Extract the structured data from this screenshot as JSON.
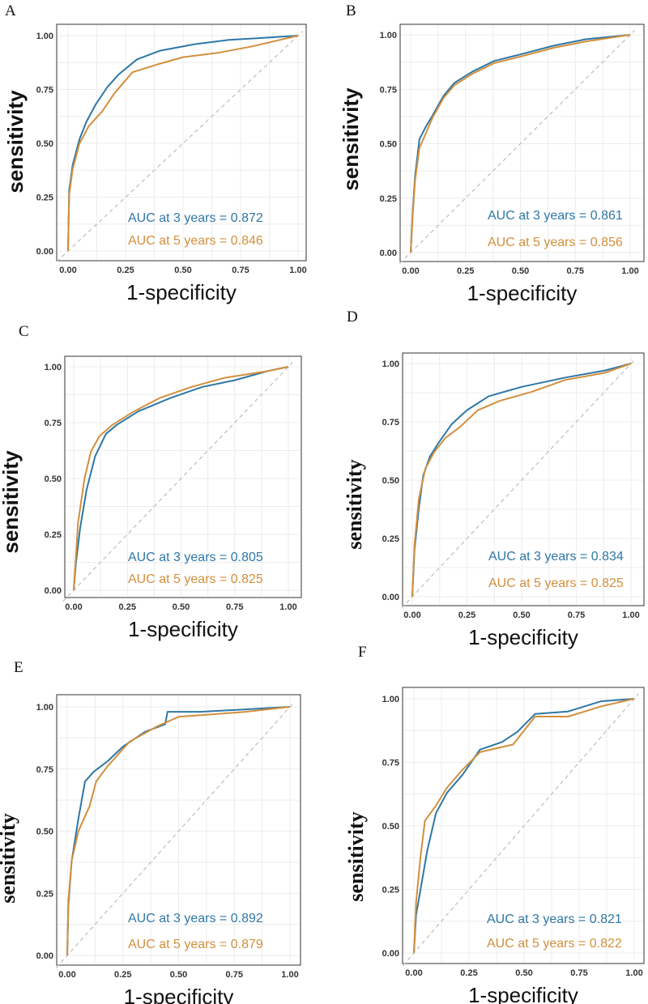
{
  "colors": {
    "series_3yr": "#2e77a6",
    "series_5yr": "#d28f3d",
    "grid": "#ececec",
    "frame": "#333333",
    "diagonal": "#bdbdbd"
  },
  "chart_data": [
    {
      "panel": "A",
      "type": "line",
      "xlabel": "1-specificity",
      "ylabel": "sensitivity",
      "xlim": [
        0,
        1
      ],
      "ylim": [
        0,
        1
      ],
      "xticks": [
        "0.00",
        "0.25",
        "0.50",
        "0.75",
        "1.00"
      ],
      "yticks": [
        "0.00",
        "0.25",
        "0.50",
        "0.75",
        "1.00"
      ],
      "series": [
        {
          "name": "3 years",
          "label": "AUC at 3 years = 0.872",
          "points": [
            [
              0,
              0
            ],
            [
              0.005,
              0.28
            ],
            [
              0.02,
              0.4
            ],
            [
              0.05,
              0.52
            ],
            [
              0.08,
              0.6
            ],
            [
              0.12,
              0.68
            ],
            [
              0.17,
              0.76
            ],
            [
              0.22,
              0.82
            ],
            [
              0.3,
              0.89
            ],
            [
              0.4,
              0.93
            ],
            [
              0.55,
              0.96
            ],
            [
              0.7,
              0.98
            ],
            [
              0.85,
              0.99
            ],
            [
              1,
              1
            ]
          ]
        },
        {
          "name": "5 years",
          "label": "AUC at 5 years = 0.846",
          "points": [
            [
              0,
              0
            ],
            [
              0.005,
              0.26
            ],
            [
              0.02,
              0.38
            ],
            [
              0.05,
              0.5
            ],
            [
              0.09,
              0.58
            ],
            [
              0.15,
              0.65
            ],
            [
              0.2,
              0.73
            ],
            [
              0.28,
              0.83
            ],
            [
              0.4,
              0.87
            ],
            [
              0.5,
              0.9
            ],
            [
              0.65,
              0.92
            ],
            [
              0.8,
              0.95
            ],
            [
              1,
              1
            ]
          ]
        }
      ]
    },
    {
      "panel": "B",
      "type": "line",
      "xlabel": "1-specificity",
      "ylabel": "sensitivity",
      "xlim": [
        0,
        1
      ],
      "ylim": [
        0,
        1
      ],
      "xticks": [
        "0.00",
        "0.25",
        "0.50",
        "0.75",
        "1.00"
      ],
      "yticks": [
        "0.00",
        "0.25",
        "0.50",
        "0.75",
        "1.00"
      ],
      "series": [
        {
          "name": "3 years",
          "label": "AUC at 3 years = 0.861",
          "points": [
            [
              0,
              0
            ],
            [
              0.01,
              0.2
            ],
            [
              0.02,
              0.35
            ],
            [
              0.04,
              0.52
            ],
            [
              0.07,
              0.58
            ],
            [
              0.1,
              0.63
            ],
            [
              0.15,
              0.72
            ],
            [
              0.2,
              0.78
            ],
            [
              0.28,
              0.83
            ],
            [
              0.38,
              0.88
            ],
            [
              0.5,
              0.91
            ],
            [
              0.65,
              0.95
            ],
            [
              0.8,
              0.98
            ],
            [
              1,
              1
            ]
          ]
        },
        {
          "name": "5 years",
          "label": "AUC at 5 years = 0.856",
          "points": [
            [
              0,
              0
            ],
            [
              0.01,
              0.18
            ],
            [
              0.02,
              0.33
            ],
            [
              0.04,
              0.48
            ],
            [
              0.07,
              0.55
            ],
            [
              0.1,
              0.62
            ],
            [
              0.15,
              0.71
            ],
            [
              0.2,
              0.77
            ],
            [
              0.28,
              0.82
            ],
            [
              0.38,
              0.87
            ],
            [
              0.5,
              0.9
            ],
            [
              0.65,
              0.94
            ],
            [
              0.8,
              0.97
            ],
            [
              1,
              1
            ]
          ]
        }
      ]
    },
    {
      "panel": "C",
      "type": "line",
      "xlabel": "1-specificity",
      "ylabel": "sensitivity",
      "xlim": [
        0,
        1
      ],
      "ylim": [
        0,
        1
      ],
      "xticks": [
        "0.00",
        "0.25",
        "0.50",
        "0.75",
        "1.00"
      ],
      "yticks": [
        "0.00",
        "0.25",
        "0.50",
        "0.75",
        "1.00"
      ],
      "series": [
        {
          "name": "3 years",
          "label": "AUC at 3 years = 0.805",
          "points": [
            [
              0,
              0
            ],
            [
              0.01,
              0.12
            ],
            [
              0.03,
              0.28
            ],
            [
              0.06,
              0.45
            ],
            [
              0.1,
              0.6
            ],
            [
              0.15,
              0.7
            ],
            [
              0.2,
              0.74
            ],
            [
              0.3,
              0.8
            ],
            [
              0.45,
              0.86
            ],
            [
              0.6,
              0.91
            ],
            [
              0.75,
              0.94
            ],
            [
              0.9,
              0.98
            ],
            [
              1,
              1
            ]
          ]
        },
        {
          "name": "5 years",
          "label": "AUC at 5 years = 0.825",
          "points": [
            [
              0,
              0
            ],
            [
              0.01,
              0.15
            ],
            [
              0.02,
              0.3
            ],
            [
              0.05,
              0.5
            ],
            [
              0.08,
              0.62
            ],
            [
              0.12,
              0.69
            ],
            [
              0.18,
              0.74
            ],
            [
              0.28,
              0.8
            ],
            [
              0.4,
              0.86
            ],
            [
              0.55,
              0.91
            ],
            [
              0.7,
              0.95
            ],
            [
              0.9,
              0.98
            ],
            [
              1,
              1
            ]
          ]
        }
      ]
    },
    {
      "panel": "D",
      "type": "line",
      "xlabel": "1-specificity",
      "ylabel": "sensitivity",
      "xlim": [
        0,
        1
      ],
      "ylim": [
        0,
        1
      ],
      "xticks": [
        "0.00",
        "0.25",
        "0.50",
        "0.75",
        "1.00"
      ],
      "yticks": [
        "0.00",
        "0.25",
        "0.50",
        "0.75",
        "1.00"
      ],
      "series": [
        {
          "name": "3 years",
          "label": "AUC at 3 years = 0.834",
          "points": [
            [
              0,
              0
            ],
            [
              0.01,
              0.2
            ],
            [
              0.03,
              0.38
            ],
            [
              0.05,
              0.52
            ],
            [
              0.08,
              0.6
            ],
            [
              0.12,
              0.66
            ],
            [
              0.18,
              0.74
            ],
            [
              0.25,
              0.8
            ],
            [
              0.35,
              0.86
            ],
            [
              0.5,
              0.9
            ],
            [
              0.7,
              0.94
            ],
            [
              0.88,
              0.97
            ],
            [
              1,
              1
            ]
          ]
        },
        {
          "name": "5 years",
          "label": "AUC at 5 years = 0.825",
          "points": [
            [
              0,
              0
            ],
            [
              0.01,
              0.22
            ],
            [
              0.03,
              0.42
            ],
            [
              0.06,
              0.55
            ],
            [
              0.1,
              0.62
            ],
            [
              0.15,
              0.68
            ],
            [
              0.22,
              0.73
            ],
            [
              0.3,
              0.8
            ],
            [
              0.4,
              0.84
            ],
            [
              0.55,
              0.88
            ],
            [
              0.7,
              0.93
            ],
            [
              0.88,
              0.96
            ],
            [
              1,
              1
            ]
          ]
        }
      ]
    },
    {
      "panel": "E",
      "type": "line",
      "xlabel": "1-specificity",
      "ylabel": "sensitivity",
      "xlim": [
        0,
        1
      ],
      "ylim": [
        0,
        1
      ],
      "xticks": [
        "0.00",
        "0.25",
        "0.50",
        "0.75",
        "1.00"
      ],
      "yticks": [
        "0.00",
        "0.25",
        "0.50",
        "0.75",
        "1.00"
      ],
      "series": [
        {
          "name": "3 years",
          "label": "AUC at 3 years = 0.892",
          "points": [
            [
              0,
              0
            ],
            [
              0.005,
              0.2
            ],
            [
              0.02,
              0.38
            ],
            [
              0.05,
              0.55
            ],
            [
              0.08,
              0.7
            ],
            [
              0.12,
              0.74
            ],
            [
              0.18,
              0.78
            ],
            [
              0.25,
              0.84
            ],
            [
              0.35,
              0.9
            ],
            [
              0.44,
              0.93
            ],
            [
              0.45,
              0.98
            ],
            [
              0.6,
              0.98
            ],
            [
              0.8,
              0.99
            ],
            [
              1,
              1
            ]
          ]
        },
        {
          "name": "5 years",
          "label": "AUC at 5 years = 0.879",
          "points": [
            [
              0,
              0
            ],
            [
              0.005,
              0.22
            ],
            [
              0.02,
              0.38
            ],
            [
              0.05,
              0.5
            ],
            [
              0.1,
              0.6
            ],
            [
              0.13,
              0.7
            ],
            [
              0.18,
              0.76
            ],
            [
              0.28,
              0.86
            ],
            [
              0.4,
              0.92
            ],
            [
              0.5,
              0.96
            ],
            [
              0.65,
              0.97
            ],
            [
              0.8,
              0.98
            ],
            [
              1,
              1
            ]
          ]
        }
      ]
    },
    {
      "panel": "F",
      "type": "line",
      "xlabel": "1-specificity",
      "ylabel": "sensitivity",
      "xlim": [
        0,
        1
      ],
      "ylim": [
        0,
        1
      ],
      "xticks": [
        "0.00",
        "0.25",
        "0.50",
        "0.75",
        "1.00"
      ],
      "yticks": [
        "0.00",
        "0.25",
        "0.50",
        "0.75",
        "1.00"
      ],
      "series": [
        {
          "name": "3 years",
          "label": "AUC at 3 years = 0.821",
          "points": [
            [
              0,
              0
            ],
            [
              0.01,
              0.15
            ],
            [
              0.03,
              0.25
            ],
            [
              0.06,
              0.4
            ],
            [
              0.1,
              0.55
            ],
            [
              0.15,
              0.63
            ],
            [
              0.22,
              0.7
            ],
            [
              0.3,
              0.8
            ],
            [
              0.4,
              0.83
            ],
            [
              0.47,
              0.87
            ],
            [
              0.55,
              0.94
            ],
            [
              0.7,
              0.95
            ],
            [
              0.85,
              0.99
            ],
            [
              1,
              1
            ]
          ]
        },
        {
          "name": "5 years",
          "label": "AUC at 5 years = 0.822",
          "points": [
            [
              0,
              0
            ],
            [
              0.01,
              0.2
            ],
            [
              0.03,
              0.38
            ],
            [
              0.05,
              0.52
            ],
            [
              0.1,
              0.58
            ],
            [
              0.15,
              0.65
            ],
            [
              0.22,
              0.72
            ],
            [
              0.3,
              0.79
            ],
            [
              0.45,
              0.82
            ],
            [
              0.55,
              0.93
            ],
            [
              0.7,
              0.93
            ],
            [
              0.85,
              0.97
            ],
            [
              1,
              1
            ]
          ]
        }
      ]
    }
  ]
}
